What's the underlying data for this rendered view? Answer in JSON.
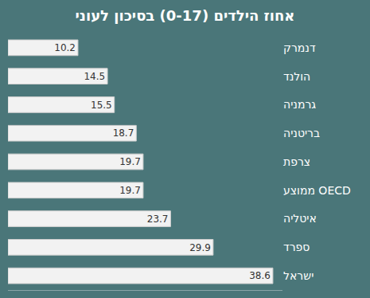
{
  "chart_data": {
    "type": "bar",
    "title": "אחוז הילדים (0-17) בסיכון לעוני",
    "orientation": "horizontal",
    "categories": [
      "דנמרק",
      "הולנד",
      "גרמניה",
      "בריטניה",
      "צרפת",
      "ממוצע OECD",
      "איטליה",
      "ספרד",
      "ישראל"
    ],
    "values": [
      10.2,
      14.5,
      15.5,
      18.7,
      19.7,
      19.7,
      23.7,
      29.9,
      38.6
    ],
    "color": "#f2f2f2",
    "xlim": [
      0,
      40
    ],
    "xticks": [],
    "tick_labels": "y",
    "data_labels": true,
    "grid": false
  }
}
